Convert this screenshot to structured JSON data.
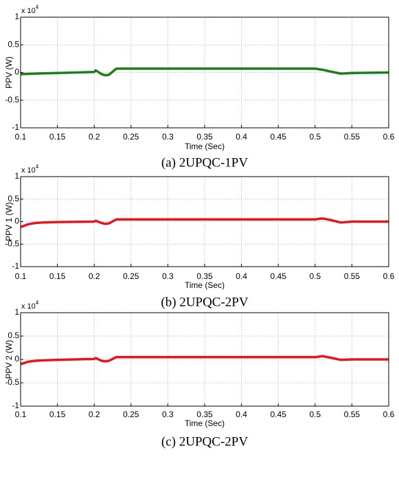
{
  "chart_data": [
    {
      "type": "line",
      "ylabel": "PPV (W)",
      "xlabel": "Time (Sec)",
      "caption": "(a) 2UPQC-1PV",
      "y_multiplier": {
        "base": "x 10",
        "exponent": "4"
      },
      "x": [
        0.1,
        0.11,
        0.12,
        0.13,
        0.15,
        0.2,
        0.202,
        0.21,
        0.215,
        0.22,
        0.23,
        0.3,
        0.4,
        0.5,
        0.51,
        0.52,
        0.535,
        0.55,
        0.6
      ],
      "series": [
        {
          "color": "#1a7f1a",
          "values": [
            -0.03,
            -0.025,
            -0.02,
            -0.015,
            -0.01,
            0.01,
            0.04,
            -0.03,
            -0.05,
            -0.04,
            0.07,
            0.07,
            0.07,
            0.07,
            0.05,
            0.02,
            -0.02,
            -0.01,
            0.0
          ]
        }
      ],
      "xlim": [
        0.1,
        0.6
      ],
      "ylim": [
        -1,
        1
      ],
      "xticks": [
        0.1,
        0.15,
        0.2,
        0.25,
        0.3,
        0.35,
        0.4,
        0.45,
        0.5,
        0.55,
        0.6
      ],
      "yticks": [
        -1,
        -0.5,
        0,
        0.5,
        1
      ],
      "grid": true
    },
    {
      "type": "line",
      "ylabel": "PPV 1 (W)",
      "xlabel": "Time (Sec)",
      "caption": "(b) 2UPQC-2PV",
      "y_multiplier": {
        "base": "x 10",
        "exponent": "4"
      },
      "x": [
        0.1,
        0.11,
        0.12,
        0.13,
        0.15,
        0.2,
        0.202,
        0.21,
        0.215,
        0.22,
        0.23,
        0.3,
        0.4,
        0.5,
        0.51,
        0.52,
        0.535,
        0.55,
        0.6
      ],
      "series": [
        {
          "color": "#e8141c",
          "values": [
            -0.12,
            -0.06,
            -0.03,
            -0.02,
            -0.01,
            0.0,
            0.02,
            -0.03,
            -0.05,
            -0.04,
            0.05,
            0.05,
            0.05,
            0.05,
            0.07,
            0.04,
            -0.02,
            0.0,
            0.0
          ]
        }
      ],
      "xlim": [
        0.1,
        0.6
      ],
      "ylim": [
        -1,
        1
      ],
      "xticks": [
        0.1,
        0.15,
        0.2,
        0.25,
        0.3,
        0.35,
        0.4,
        0.45,
        0.5,
        0.55,
        0.6
      ],
      "yticks": [
        -1,
        -0.5,
        0,
        0.5,
        1
      ],
      "grid": true
    },
    {
      "type": "line",
      "ylabel": "PPV 2 (W)",
      "xlabel": "Time (Sec)",
      "caption": "(c) 2UPQC-2PV",
      "y_multiplier": {
        "base": "x 10",
        "exponent": "4"
      },
      "x": [
        0.1,
        0.11,
        0.12,
        0.13,
        0.15,
        0.2,
        0.202,
        0.21,
        0.215,
        0.22,
        0.23,
        0.3,
        0.4,
        0.5,
        0.51,
        0.52,
        0.535,
        0.55,
        0.6
      ],
      "series": [
        {
          "color": "#e8141c",
          "values": [
            -0.1,
            -0.05,
            -0.03,
            -0.02,
            -0.01,
            0.01,
            0.03,
            -0.03,
            -0.04,
            -0.03,
            0.05,
            0.05,
            0.05,
            0.05,
            0.07,
            0.04,
            -0.01,
            0.0,
            0.0
          ]
        }
      ],
      "xlim": [
        0.1,
        0.6
      ],
      "ylim": [
        -1,
        1
      ],
      "xticks": [
        0.1,
        0.15,
        0.2,
        0.25,
        0.3,
        0.35,
        0.4,
        0.45,
        0.5,
        0.55,
        0.6
      ],
      "yticks": [
        -1,
        -0.5,
        0,
        0.5,
        1
      ],
      "grid": true
    }
  ]
}
